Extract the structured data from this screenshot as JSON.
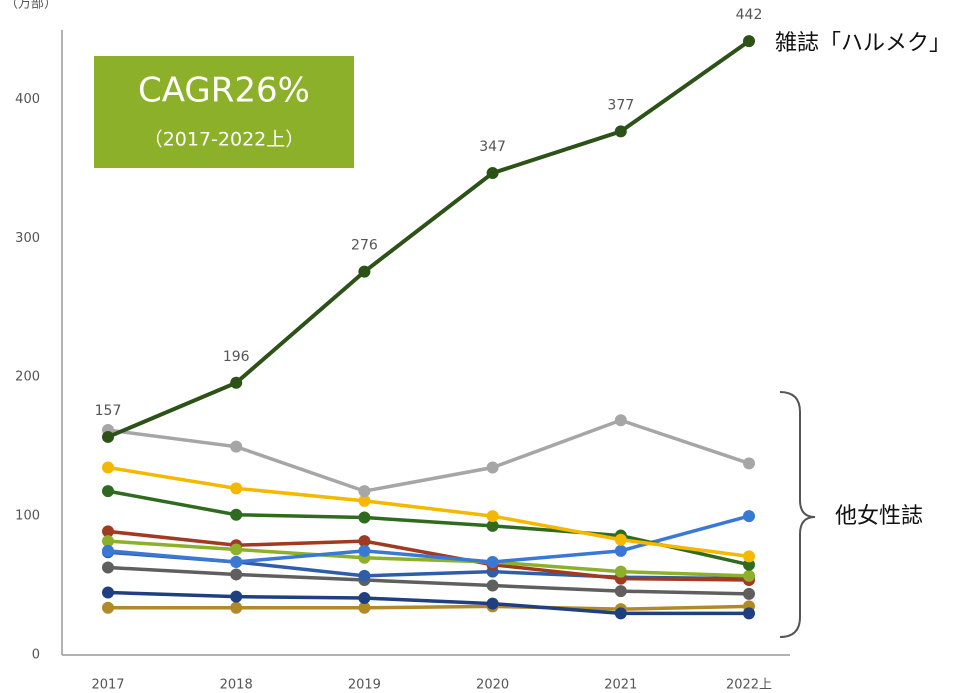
{
  "chart_data": {
    "type": "line",
    "y_axis_label": "（万部）",
    "categories": [
      "2017",
      "2018",
      "2019",
      "2020",
      "2021",
      "2022上"
    ],
    "ylim": [
      0,
      450
    ],
    "yticks": [
      0,
      100,
      200,
      300,
      400
    ],
    "annotations": {
      "cagr": "CAGR26%",
      "period": "（2017-2022上）",
      "series_label": "雑誌「ハルメク」",
      "group_label": "他女性誌"
    },
    "series": [
      {
        "name": "雑誌「ハルメク」",
        "color": "#2c5218",
        "values": [
          157,
          196,
          276,
          347,
          377,
          442
        ],
        "labeled": true
      },
      {
        "color": "#a6a6a6",
        "values": [
          162,
          150,
          118,
          135,
          169,
          138
        ]
      },
      {
        "color": "#f5b800",
        "values": [
          135,
          120,
          111,
          100,
          83,
          71
        ]
      },
      {
        "color": "#2f6b1f",
        "values": [
          118,
          101,
          99,
          93,
          86,
          65
        ]
      },
      {
        "color": "#3a78d6",
        "values": [
          75,
          67,
          75,
          67,
          75,
          100
        ]
      },
      {
        "color": "#8db02a",
        "values": [
          82,
          76,
          70,
          67,
          60,
          57
        ]
      },
      {
        "color": "#a03a22",
        "values": [
          89,
          79,
          82,
          65,
          55,
          54
        ]
      },
      {
        "color": "#2f5ea8",
        "values": [
          74,
          67,
          57,
          60,
          56,
          55
        ]
      },
      {
        "color": "#5f5f5f",
        "values": [
          63,
          58,
          54,
          50,
          46,
          44
        ]
      },
      {
        "color": "#1f3f80",
        "values": [
          45,
          42,
          41,
          37,
          30,
          30
        ]
      },
      {
        "color": "#b08a28",
        "values": [
          34,
          34,
          34,
          35,
          33,
          35
        ]
      }
    ]
  }
}
